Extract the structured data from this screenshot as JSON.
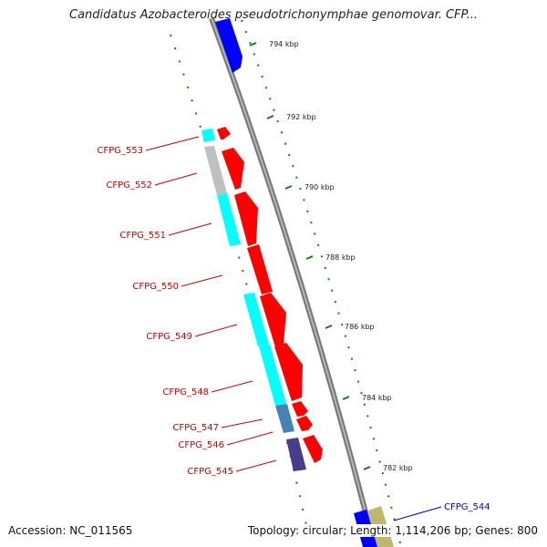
{
  "title": "Candidatus Azobacteroides pseudotrichonymphae genomovar. CFP...",
  "footer": {
    "accession": "Accession: NC_011565",
    "summary": "Topology: circular; Length: 1,114,206 bp; Genes: 800"
  },
  "ticks": [
    "794 kbp",
    "792 kbp",
    "790 kbp",
    "788 kbp",
    "786 kbp",
    "784 kbp",
    "782 kbp"
  ],
  "genes": [
    "CFPG_553",
    "CFPG_552",
    "CFPG_551",
    "CFPG_550",
    "CFPG_549",
    "CFPG_548",
    "CFPG_547",
    "CFPG_546",
    "CFPG_545",
    "CFPG_544"
  ],
  "colors": {
    "backbone": "#8a8a8a",
    "forward_gene": "#ff0000",
    "label_red": "#cc0000",
    "label_blue": "#0000cc",
    "cyan": "#00ffff",
    "gray": "#c0c0c0",
    "steelblue": "#4682b4",
    "slateblue": "#483d8b",
    "blue": "#0000ff",
    "khaki": "#bdb76b",
    "dotted": "#1a7a1a"
  }
}
